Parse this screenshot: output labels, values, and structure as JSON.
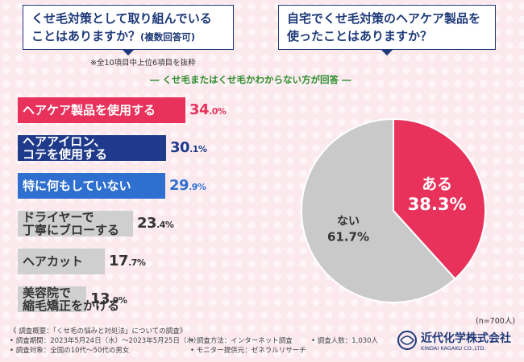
{
  "questions": {
    "q1_line1": "くせ毛対策として取り組んでいる",
    "q1_line2": "ことはありますか？",
    "q1_sub": "(複数回答可)",
    "q2_line1": "自宅でくせ毛対策のヘアケア製品を",
    "q2_line2": "使ったことはありますか？"
  },
  "notes": {
    "top6": "※全10項目中上位6項目を抜粋",
    "respondents": "― くせ毛またはくせ毛かわからない方が回答 ―",
    "n": "(n=700人)"
  },
  "chart_data": [
    {
      "type": "bar",
      "title": "くせ毛対策として取り組んでいることはありますか？(複数回答可)",
      "categories": [
        "ヘアケア製品を使用する",
        "ヘアアイロン、コテを使用する",
        "特に何もしていない",
        "ドライヤーで丁寧にブローする",
        "ヘアカット",
        "美容院で縮毛矯正をかける"
      ],
      "display_labels": [
        "ヘアケア製品を使用する",
        "ヘアアイロン、\nコテを使用する",
        "特に何もしていない",
        "ドライヤーで\n丁寧にブローする",
        "ヘアカット",
        "美容院で\n縮毛矯正をかける"
      ],
      "values": [
        34.0,
        30.1,
        29.9,
        23.4,
        17.7,
        13.9
      ],
      "int_parts": [
        "34",
        "30",
        "29",
        "23",
        "17",
        "13"
      ],
      "dec_parts": [
        ".0%",
        ".1%",
        ".9%",
        ".4%",
        ".7%",
        ".9%"
      ],
      "colors": [
        "#e8325c",
        "#1f3a8a",
        "#2f6fd0",
        "#cfcfcf",
        "#cfcfcf",
        "#cfcfcf"
      ],
      "pct_colors": [
        "#e8325c",
        "#1f3a8a",
        "#2f6fd0",
        "#333333",
        "#333333",
        "#333333"
      ],
      "unit": "%"
    },
    {
      "type": "pie",
      "title": "自宅でくせ毛対策のヘアケア製品を使ったことはありますか？",
      "labels": [
        "ある",
        "ない"
      ],
      "values": [
        38.3,
        61.7
      ],
      "value_text": [
        "38.3%",
        "61.7%"
      ],
      "colors": [
        "#e8325c",
        "#c9c9c9"
      ]
    }
  ],
  "footer": {
    "col1": [
      "《 調査概要：「くせ毛の悩みと対処法」についての調査》",
      "• 調査期間：2023年5月24日（水）〜2023年5月25日（木）",
      "• 調査対象：全国の10代〜50代の男女"
    ],
    "col2": [
      "• 調査方法：インターネット調査",
      "• モニター提供元：ゼネラルリサーチ"
    ],
    "col3": [
      "• 調査人数：1,030人"
    ],
    "company": "近代化学株式会社",
    "company_en": "KINDAI KAGAKU CO.,LTD."
  }
}
